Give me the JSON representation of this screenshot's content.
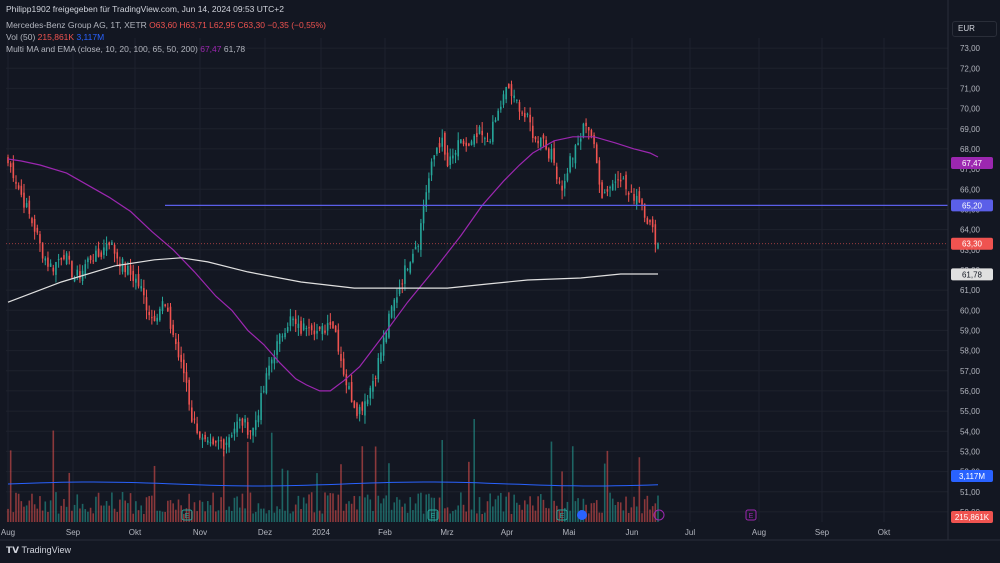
{
  "header": {
    "title_line": "Philipp1902 freigegeben für TradingView.com, Jun 14, 2024 09:53 UTC+2",
    "symbol": "Mercedes-Benz Group AG, 1T, XETR",
    "ohlc": "O63,60  H63,71  L62,95  C63,30",
    "change": "−0,35 (−0,55%)",
    "vol_label": "Vol (50)",
    "vol_value": "215,861K",
    "vol_ma": "3,117M",
    "ma_label": "Multi MA and EMA (close, 10, 20, 100, 65, 50, 200)",
    "ma_value1": "67,47",
    "ma_value2": "61,78"
  },
  "currency": "EUR",
  "footer": {
    "logo": "TradingView"
  },
  "colors": {
    "up": "#26a69a",
    "down": "#ef5350",
    "ma_fast": "#9c27b0",
    "ma_slow": "#e0e0e0",
    "hline": "#5b5fe8",
    "vol_ma": "#2962ff",
    "bg": "#131722",
    "grid": "#1e222d"
  },
  "chart_data": {
    "type": "candlestick",
    "ylim": [
      49.5,
      73.5
    ],
    "y_ticks": [
      "73,00",
      "72,00",
      "71,00",
      "70,00",
      "69,00",
      "68,00",
      "67,00",
      "66,00",
      "65,00",
      "64,00",
      "63,00",
      "62,00",
      "61,00",
      "60,00",
      "59,00",
      "58,00",
      "57,00",
      "56,00",
      "55,00",
      "54,00",
      "53,00",
      "52,00",
      "51,00",
      "50,00"
    ],
    "x_ticks": [
      "Aug",
      "Sep",
      "Okt",
      "Nov",
      "Dez",
      "2024",
      "Feb",
      "Mrz",
      "Apr",
      "Mai",
      "Jun",
      "Jul",
      "Aug",
      "Sep",
      "Okt"
    ],
    "last_price": "63,30",
    "hline_level": "65,20",
    "ma_fast_last": "67,47",
    "ma_slow_last": "61,78",
    "vol_last": "215,861K",
    "vol_ma_last": "3,117M",
    "close_path": [
      67.3,
      66.8,
      66.0,
      65.3,
      64.6,
      63.9,
      63.0,
      62.4,
      62.1,
      62.5,
      62.9,
      62.2,
      61.6,
      61.8,
      62.3,
      62.7,
      62.6,
      62.9,
      63.6,
      63.0,
      62.5,
      62.1,
      61.8,
      61.5,
      61.0,
      60.2,
      59.6,
      60.0,
      60.4,
      59.4,
      58.6,
      57.3,
      56.7,
      54.7,
      54.2,
      53.5,
      53.2,
      53.1,
      53.5,
      53.4,
      53.9,
      54.3,
      54.5,
      54.2,
      54.0,
      55.0,
      56.0,
      57.2,
      58.0,
      58.6,
      59.3,
      59.6,
      59.1,
      59.0,
      59.5,
      59.2,
      58.8,
      59.1,
      59.6,
      58.9,
      57.5,
      56.3,
      55.6,
      55.0,
      55.4,
      56.0,
      56.8,
      57.8,
      58.9,
      60.0,
      60.8,
      61.6,
      62.4,
      63.1,
      63.6,
      65.6,
      66.8,
      68.0,
      68.5,
      67.1,
      67.5,
      68.1,
      68.3,
      68.0,
      68.4,
      68.8,
      68.2,
      68.8,
      69.6,
      70.4,
      71.1,
      70.4,
      70.2,
      69.6,
      69.2,
      68.3,
      68.8,
      68.0,
      67.6,
      66.6,
      66.0,
      67.4,
      67.8,
      68.5,
      69.4,
      68.7,
      67.2,
      65.7,
      66.1,
      66.3,
      66.9,
      66.2,
      65.5,
      65.8,
      65.4,
      64.6,
      63.9,
      63.3
    ],
    "ma_fast": [
      [
        0,
        67.5
      ],
      [
        5,
        67.4
      ],
      [
        12,
        67.2
      ],
      [
        22,
        66.8
      ],
      [
        30,
        66.2
      ],
      [
        38,
        65.6
      ],
      [
        46,
        64.9
      ],
      [
        54,
        63.9
      ],
      [
        62,
        63.0
      ],
      [
        70,
        61.9
      ],
      [
        78,
        60.7
      ],
      [
        84,
        60.0
      ],
      [
        90,
        59.0
      ],
      [
        96,
        58.3
      ],
      [
        102,
        57.4
      ],
      [
        108,
        56.6
      ],
      [
        112,
        56.3
      ],
      [
        117,
        56.0
      ],
      [
        121,
        56.0
      ],
      [
        126,
        56.5
      ],
      [
        132,
        57.2
      ],
      [
        140,
        58.6
      ],
      [
        150,
        60.4
      ],
      [
        160,
        62.0
      ],
      [
        170,
        63.7
      ],
      [
        178,
        65.2
      ],
      [
        186,
        66.4
      ],
      [
        192,
        67.2
      ],
      [
        197,
        67.8
      ],
      [
        205,
        68.4
      ],
      [
        212,
        68.6
      ],
      [
        220,
        68.6
      ],
      [
        228,
        68.3
      ],
      [
        235,
        68.0
      ],
      [
        241,
        67.8
      ],
      [
        244,
        67.6
      ]
    ],
    "ma_slow": [
      [
        0,
        60.4
      ],
      [
        20,
        61.4
      ],
      [
        40,
        62.2
      ],
      [
        55,
        62.5
      ],
      [
        65,
        62.6
      ],
      [
        75,
        62.4
      ],
      [
        90,
        61.9
      ],
      [
        110,
        61.4
      ],
      [
        130,
        61.1
      ],
      [
        150,
        61.1
      ],
      [
        165,
        61.1
      ],
      [
        180,
        61.3
      ],
      [
        195,
        61.5
      ],
      [
        215,
        61.6
      ],
      [
        230,
        61.8
      ],
      [
        244,
        61.8
      ]
    ],
    "note": "Daily candlesticks from late July 2024-prior year to mid-June 2024; volumes shown at the bottom."
  }
}
